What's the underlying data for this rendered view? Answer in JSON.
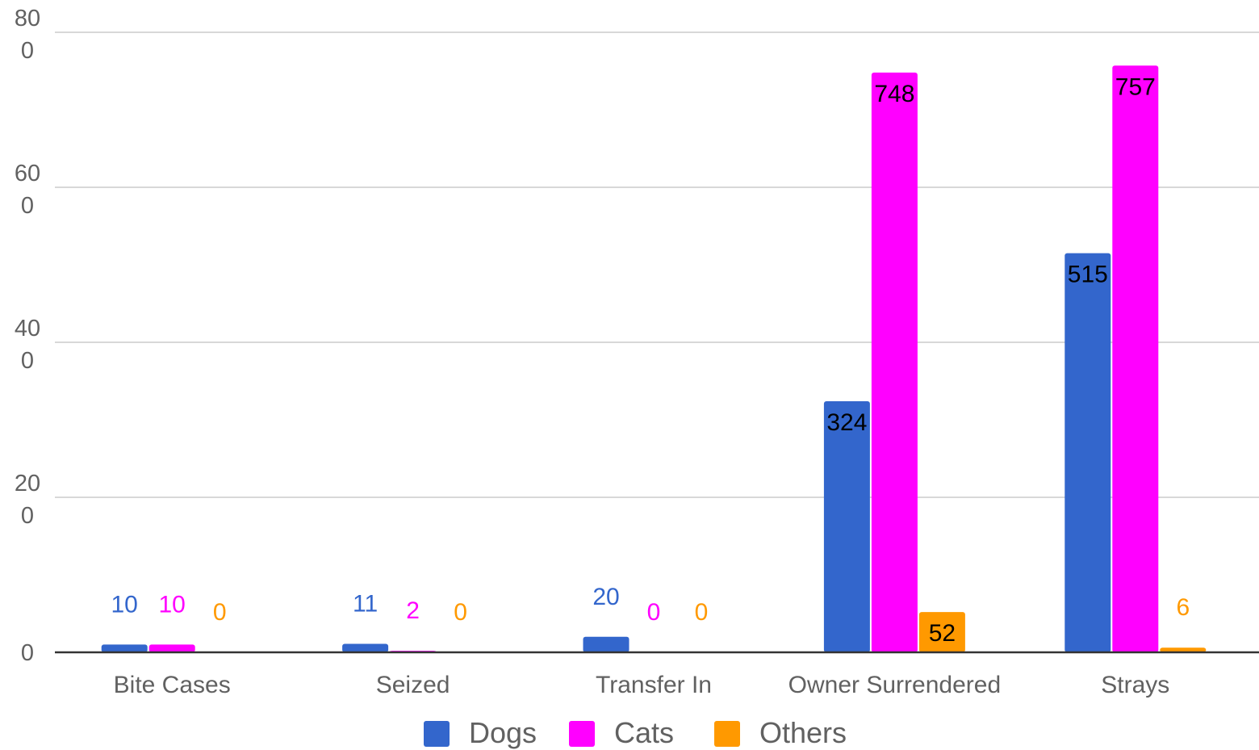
{
  "chart_data": {
    "type": "bar",
    "categories": [
      "Bite Cases",
      "Seized",
      "Transfer In",
      "Owner Surrendered",
      "Strays"
    ],
    "series": [
      {
        "name": "Dogs",
        "color": "#3366cc",
        "values": [
          10,
          11,
          20,
          324,
          515
        ]
      },
      {
        "name": "Cats",
        "color": "#ff00ff",
        "values": [
          10,
          2,
          0,
          748,
          757
        ]
      },
      {
        "name": "Others",
        "color": "#ff9900",
        "values": [
          0,
          0,
          0,
          52,
          6
        ]
      }
    ],
    "y_ticks": [
      {
        "value": 0,
        "lines": [
          "0"
        ]
      },
      {
        "value": 200,
        "lines": [
          "20",
          "0"
        ]
      },
      {
        "value": 400,
        "lines": [
          "40",
          "0"
        ]
      },
      {
        "value": 600,
        "lines": [
          "60",
          "0"
        ]
      },
      {
        "value": 800,
        "lines": [
          "80",
          "0"
        ]
      }
    ],
    "ylim": [
      0,
      800
    ],
    "grid": true,
    "legend": "bottom"
  }
}
